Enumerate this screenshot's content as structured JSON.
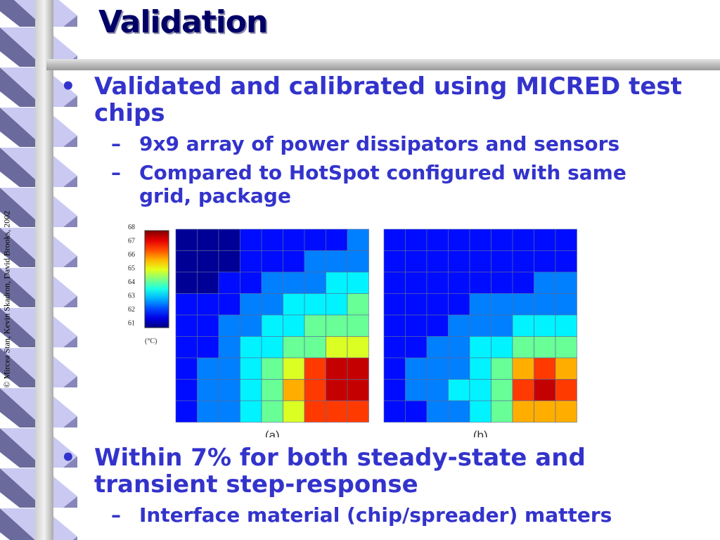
{
  "slide": {
    "title": "Validation",
    "copyright": "© Mircea Stan, Kevin Skadron, David Brooks, 2002",
    "bullet_glyph": "•",
    "dash_glyph": "–",
    "bullets": [
      {
        "text": "Validated and calibrated using MICRED test chips",
        "sub": [
          "9x9 array of power dissipators and sensors",
          "Compared to HotSpot configured with same grid, package"
        ]
      },
      {
        "text": "Within 7% for both steady-state and transient step-response",
        "sub": [
          "Interface material (chip/spreader) matters"
        ]
      }
    ]
  },
  "figure": {
    "colorbar": {
      "ticks": [
        "68",
        "67",
        "66",
        "65",
        "64",
        "63",
        "62",
        "61"
      ],
      "unit": "(°C)",
      "min": 61,
      "max": 68
    },
    "panels": [
      {
        "label": "(a)",
        "grid": [
          [
            60,
            60,
            60,
            61,
            61,
            61,
            61,
            61,
            62
          ],
          [
            60,
            60,
            60,
            61,
            61,
            61,
            62,
            62,
            62
          ],
          [
            60,
            60,
            61,
            61,
            62,
            62,
            62,
            63,
            63
          ],
          [
            61,
            61,
            61,
            62,
            62,
            63,
            63,
            63,
            64
          ],
          [
            61,
            61,
            62,
            62,
            63,
            63,
            64,
            64,
            64
          ],
          [
            61,
            61,
            62,
            63,
            63,
            64,
            64,
            65,
            65
          ],
          [
            61,
            62,
            62,
            63,
            64,
            65,
            67,
            68,
            68
          ],
          [
            61,
            62,
            62,
            63,
            64,
            66,
            67,
            68,
            68
          ],
          [
            61,
            62,
            62,
            63,
            64,
            65,
            67,
            67,
            67
          ]
        ]
      },
      {
        "label": "(b)",
        "grid": [
          [
            61,
            61,
            61,
            61,
            61,
            61,
            61,
            61,
            61
          ],
          [
            61,
            61,
            61,
            61,
            61,
            61,
            61,
            61,
            61
          ],
          [
            61,
            61,
            61,
            61,
            61,
            61,
            61,
            62,
            62
          ],
          [
            61,
            61,
            61,
            61,
            62,
            62,
            62,
            62,
            62
          ],
          [
            61,
            61,
            61,
            62,
            62,
            62,
            63,
            63,
            63
          ],
          [
            61,
            61,
            62,
            62,
            63,
            63,
            64,
            64,
            64
          ],
          [
            61,
            62,
            62,
            62,
            63,
            64,
            66,
            67,
            66
          ],
          [
            61,
            62,
            62,
            63,
            63,
            64,
            67,
            68,
            67
          ],
          [
            61,
            61,
            62,
            62,
            63,
            64,
            66,
            66,
            66
          ]
        ]
      }
    ]
  }
}
